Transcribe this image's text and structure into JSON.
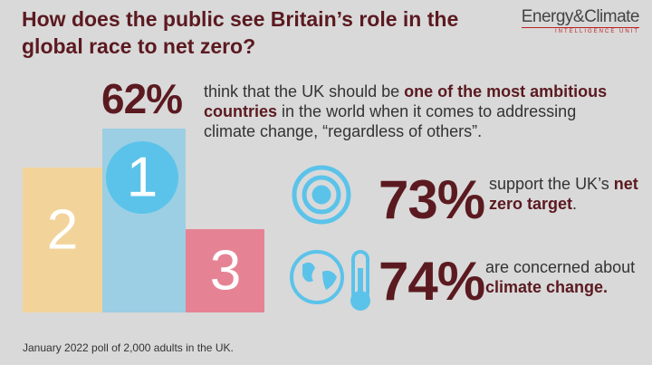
{
  "header": {
    "title": "How does the public see Britain’s role in the global race to net zero?",
    "logo": {
      "name": "Energy&Climate",
      "tagline": "INTELLIGENCE UNIT"
    }
  },
  "podium": {
    "places": [
      "2",
      "1",
      "3"
    ]
  },
  "stats": [
    {
      "figure": "62%",
      "text": [
        "think that the UK should be ",
        "one of the most ambitious countries",
        " in the world when it comes to addressing climate change, “regardless of others”."
      ]
    },
    {
      "figure": "73%",
      "text": [
        "support the UK’s ",
        "net zero target",
        "."
      ]
    },
    {
      "figure": "74%",
      "text": [
        "are concerned about ",
        "climate change."
      ]
    }
  ],
  "footer": {
    "note": "January 2022 poll of 2,000 adults in the UK."
  }
}
